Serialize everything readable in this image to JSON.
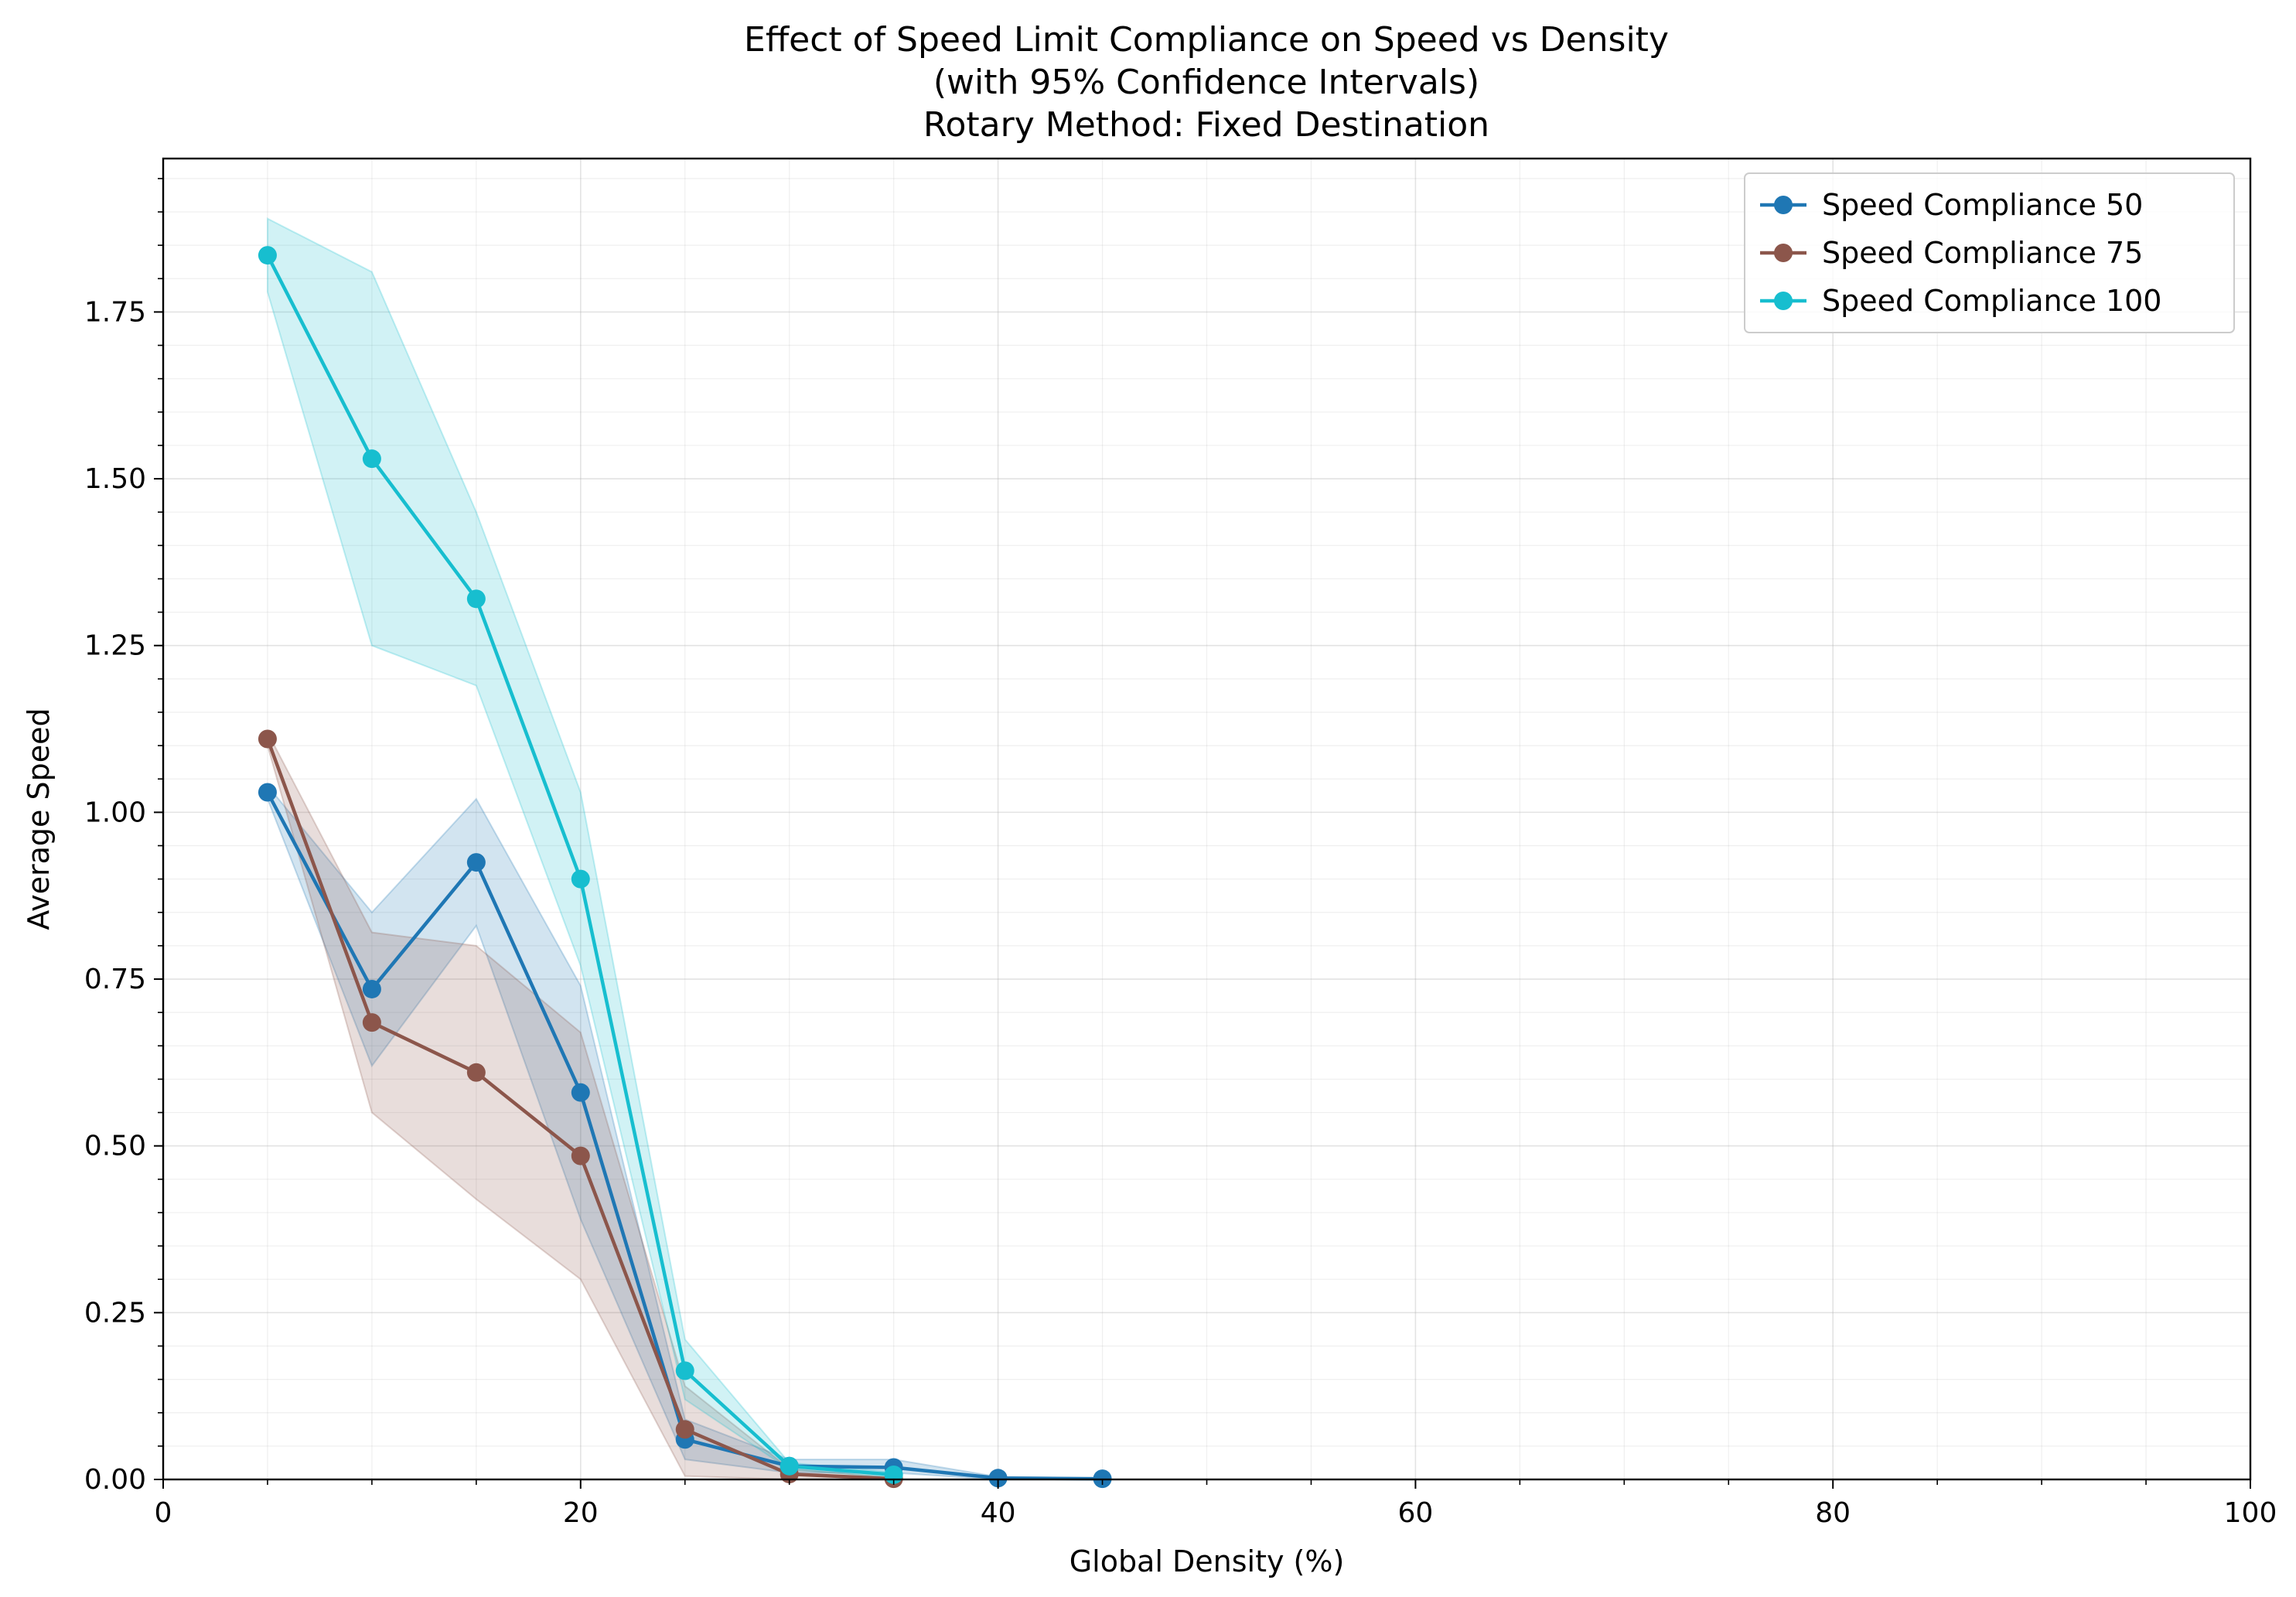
{
  "chart_data": {
    "type": "line",
    "title_lines": [
      "Effect of Speed Limit Compliance on Speed vs Density",
      "(with 95% Confidence Intervals)",
      "Rotary Method: Fixed Destination"
    ],
    "xlabel": "Global Density (%)",
    "ylabel": "Average Speed",
    "xlim": [
      0,
      100
    ],
    "ylim": [
      0,
      1.98
    ],
    "xticks": [
      0,
      20,
      40,
      60,
      80,
      100
    ],
    "xtick_labels": [
      "0",
      "20",
      "40",
      "60",
      "80",
      "100"
    ],
    "yticks": [
      0,
      0.25,
      0.5,
      0.75,
      1.0,
      1.25,
      1.5,
      1.75
    ],
    "ytick_labels": [
      "0.00",
      "0.25",
      "0.50",
      "0.75",
      "1.00",
      "1.25",
      "1.50",
      "1.75"
    ],
    "grid": true,
    "legend_position": "top-right",
    "series": [
      {
        "name": "Speed Compliance 50",
        "color": "#1f77b4",
        "x": [
          5,
          10,
          15,
          20,
          25,
          30,
          35,
          40,
          45
        ],
        "y": [
          1.03,
          0.735,
          0.925,
          0.58,
          0.06,
          0.02,
          0.018,
          0.002,
          0.001
        ],
        "ci_lower": [
          1.02,
          0.62,
          0.83,
          0.39,
          0.03,
          0.01,
          0.01,
          0.0,
          0.0
        ],
        "ci_upper": [
          1.04,
          0.85,
          1.02,
          0.74,
          0.09,
          0.03,
          0.03,
          0.004,
          0.002
        ]
      },
      {
        "name": "Speed Compliance 75",
        "color": "#8c564b",
        "x": [
          5,
          10,
          15,
          20,
          25,
          30,
          35
        ],
        "y": [
          1.11,
          0.685,
          0.61,
          0.485,
          0.075,
          0.008,
          0.001
        ],
        "ci_lower": [
          1.1,
          0.55,
          0.42,
          0.3,
          0.005,
          0.0,
          0.0
        ],
        "ci_upper": [
          1.12,
          0.82,
          0.8,
          0.67,
          0.14,
          0.016,
          0.003
        ]
      },
      {
        "name": "Speed Compliance 100",
        "color": "#17becf",
        "x": [
          5,
          10,
          15,
          20,
          25,
          30,
          35
        ],
        "y": [
          1.835,
          1.53,
          1.32,
          0.9,
          0.163,
          0.02,
          0.007
        ],
        "ci_lower": [
          1.78,
          1.25,
          1.19,
          0.77,
          0.12,
          0.015,
          0.003
        ],
        "ci_upper": [
          1.89,
          1.81,
          1.45,
          1.03,
          0.21,
          0.025,
          0.011
        ]
      }
    ]
  }
}
